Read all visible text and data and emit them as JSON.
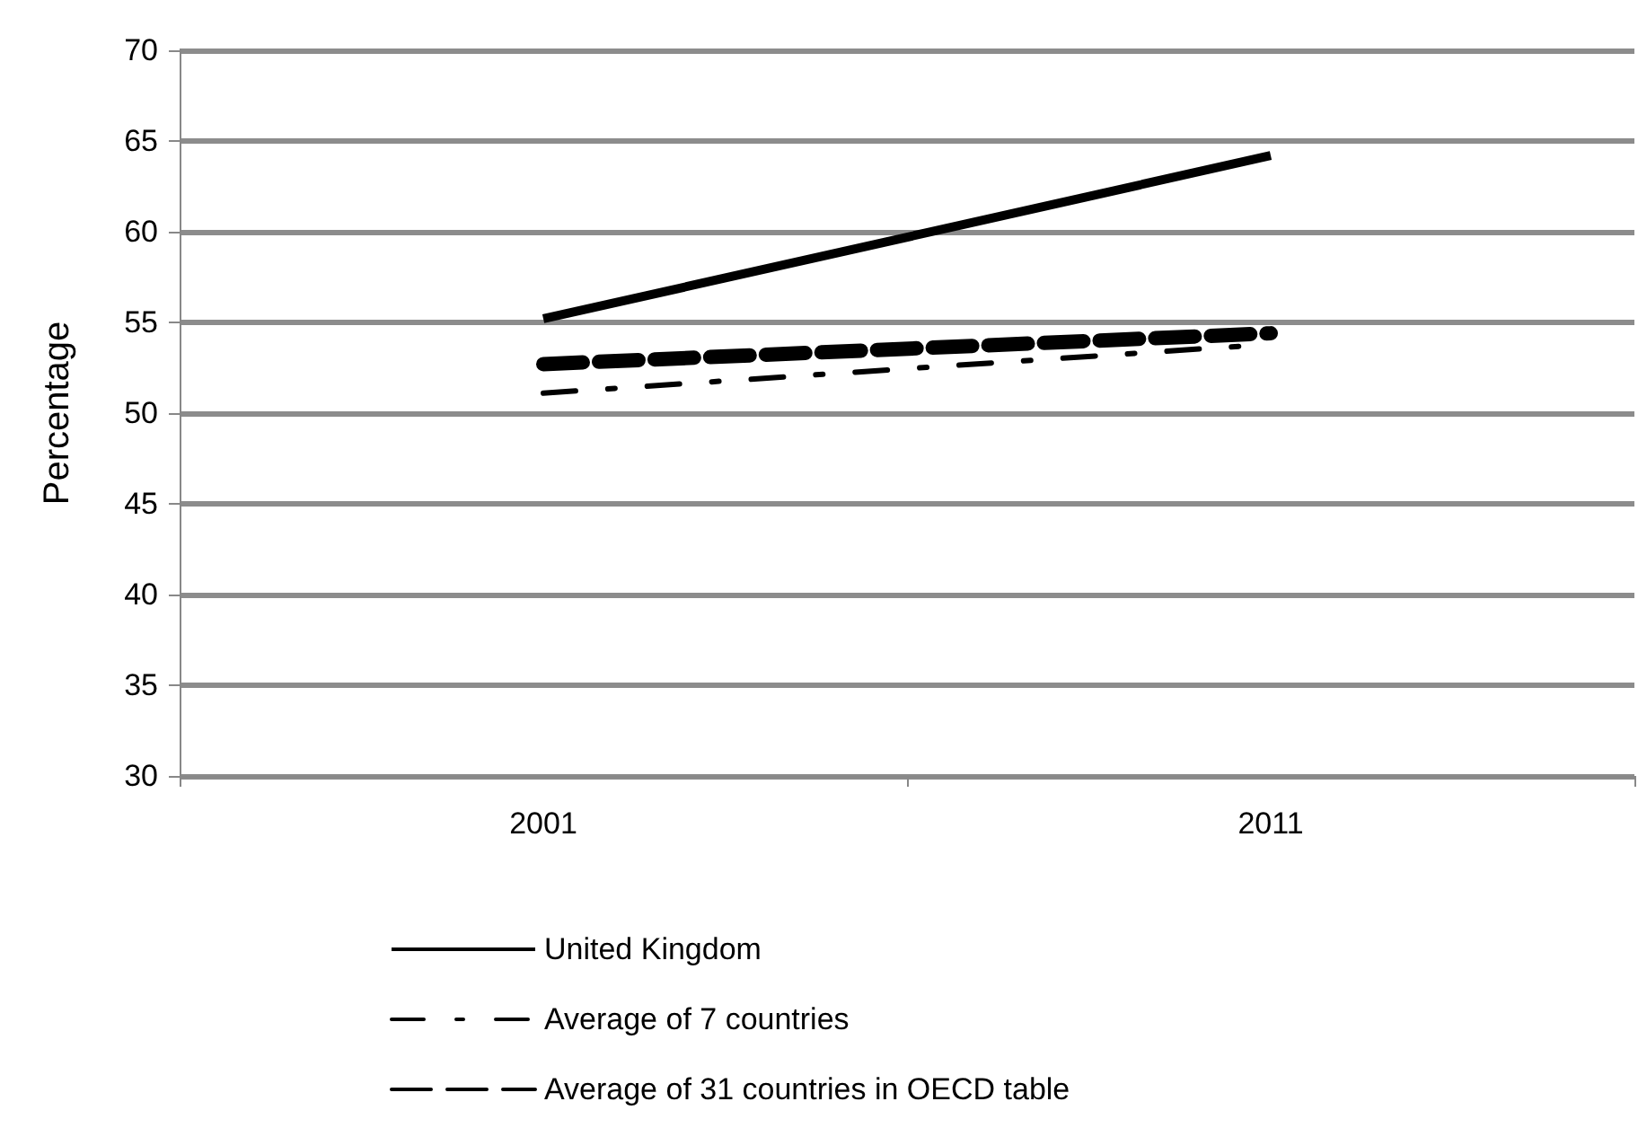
{
  "chart_data": {
    "type": "line",
    "ylabel": "Percentage",
    "categories": [
      "2001",
      "2011"
    ],
    "series": [
      {
        "name": "United Kingdom",
        "color": "#000000",
        "values": [
          55.2,
          64.2
        ],
        "line_style": "solid"
      },
      {
        "name": "Average of 7 countries",
        "color": "#000000",
        "values": [
          51.1,
          53.8
        ],
        "line_style": "dashed"
      },
      {
        "name": "Average of 31 countries in OECD table",
        "color": "#000000",
        "values": [
          52.7,
          54.4
        ],
        "line_style": "dashed"
      }
    ],
    "ylim": [
      30,
      70
    ],
    "yticks": [
      30,
      35,
      40,
      45,
      50,
      55,
      60,
      65,
      70
    ],
    "grid": "y",
    "legend": "bottom",
    "marker": "none"
  }
}
